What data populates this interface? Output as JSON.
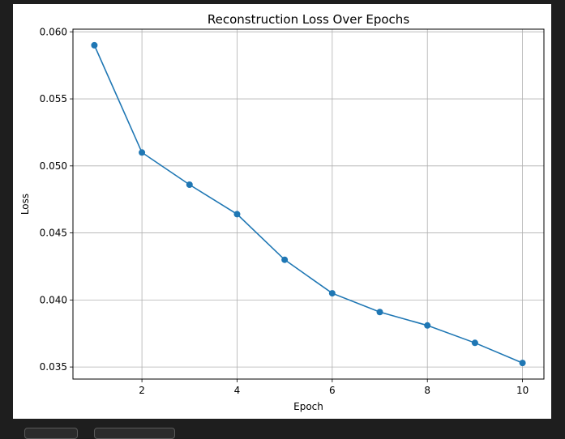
{
  "output_header": "",
  "chart_data": {
    "type": "line",
    "title": "Reconstruction Loss Over Epochs",
    "xlabel": "Epoch",
    "ylabel": "Loss",
    "x": [
      1,
      2,
      3,
      4,
      5,
      6,
      7,
      8,
      9,
      10
    ],
    "series": [
      {
        "values": [
          0.059,
          0.051,
          0.0486,
          0.0464,
          0.043,
          0.0405,
          0.0391,
          0.0381,
          0.0368,
          0.0353
        ],
        "color": "#1f77b4"
      }
    ],
    "xticks": [
      2,
      4,
      6,
      8,
      10
    ],
    "xtick_labels": [
      "2",
      "4",
      "6",
      "8",
      "10"
    ],
    "yticks": [
      0.035,
      0.04,
      0.045,
      0.05,
      0.055,
      0.06
    ],
    "ytick_labels": [
      "0.035",
      "0.040",
      "0.045",
      "0.050",
      "0.055",
      "0.060"
    ],
    "xlim": [
      0.55,
      10.45
    ],
    "ylim": [
      0.0341,
      0.0602
    ],
    "grid": true,
    "marker": "circle",
    "grid_color": "#b0b0b0",
    "axis_color": "#000000"
  },
  "toolbar": {
    "buttons": [
      {
        "label": ""
      },
      {
        "label": ""
      }
    ]
  }
}
